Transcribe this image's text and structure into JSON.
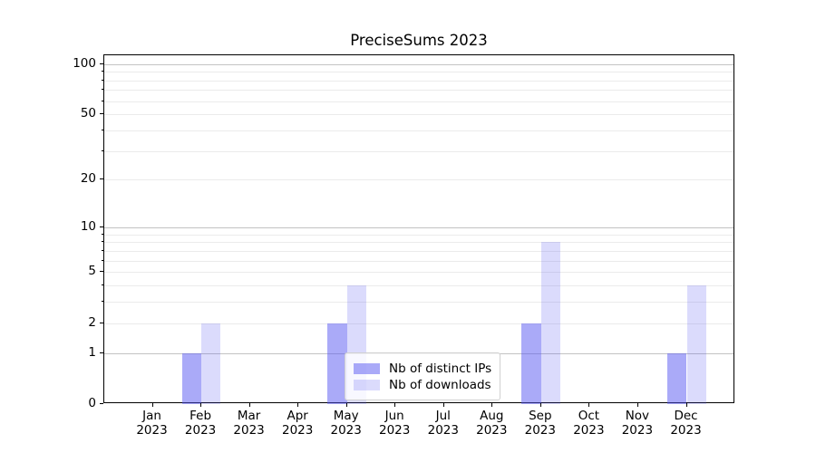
{
  "chart_data": {
    "type": "bar",
    "title": "PreciseSums 2023",
    "categories": [
      "Jan",
      "Feb",
      "Mar",
      "Apr",
      "May",
      "Jun",
      "Jul",
      "Aug",
      "Sep",
      "Oct",
      "Nov",
      "Dec"
    ],
    "year_label": "2023",
    "series": [
      {
        "name": "Nb of distinct IPs",
        "color": "rgba(85,85,242,0.5)",
        "values": [
          0,
          1,
          0,
          0,
          2,
          0,
          0,
          0,
          2,
          0,
          0,
          1
        ]
      },
      {
        "name": "Nb of downloads",
        "color": "rgba(85,85,242,0.21)",
        "values": [
          0,
          2,
          0,
          0,
          4,
          0,
          0,
          0,
          8,
          0,
          0,
          4
        ]
      }
    ],
    "xlabel": "",
    "ylabel": "",
    "yscale": "log1p",
    "ylim": [
      0,
      112.7
    ],
    "yticks": [
      0,
      1,
      2,
      5,
      10,
      20,
      50,
      100
    ],
    "ytick_labels": [
      "0",
      "1",
      "2",
      "5",
      "10",
      "20",
      "50",
      "100"
    ],
    "minor_yticks": [
      3,
      4,
      6,
      7,
      8,
      9,
      30,
      40,
      60,
      70,
      80,
      90
    ],
    "major_gridlines": [
      1,
      10,
      100
    ],
    "minor_gridlines": [
      2,
      3,
      4,
      5,
      6,
      7,
      8,
      9,
      20,
      30,
      40,
      50,
      60,
      70,
      80,
      90
    ],
    "grid": "on",
    "legend": {
      "position": "lower center",
      "entries": [
        "Nb of distinct IPs",
        "Nb of downloads"
      ]
    },
    "colors": {
      "bar_distinct_ips": "rgba(85,85,242,0.5)",
      "bar_downloads": "rgba(85,85,242,0.21)",
      "major_grid": "#c3c3c3",
      "minor_grid": "#ebebeb",
      "spine": "#000000",
      "text": "#000000",
      "background": "#ffffff"
    }
  }
}
